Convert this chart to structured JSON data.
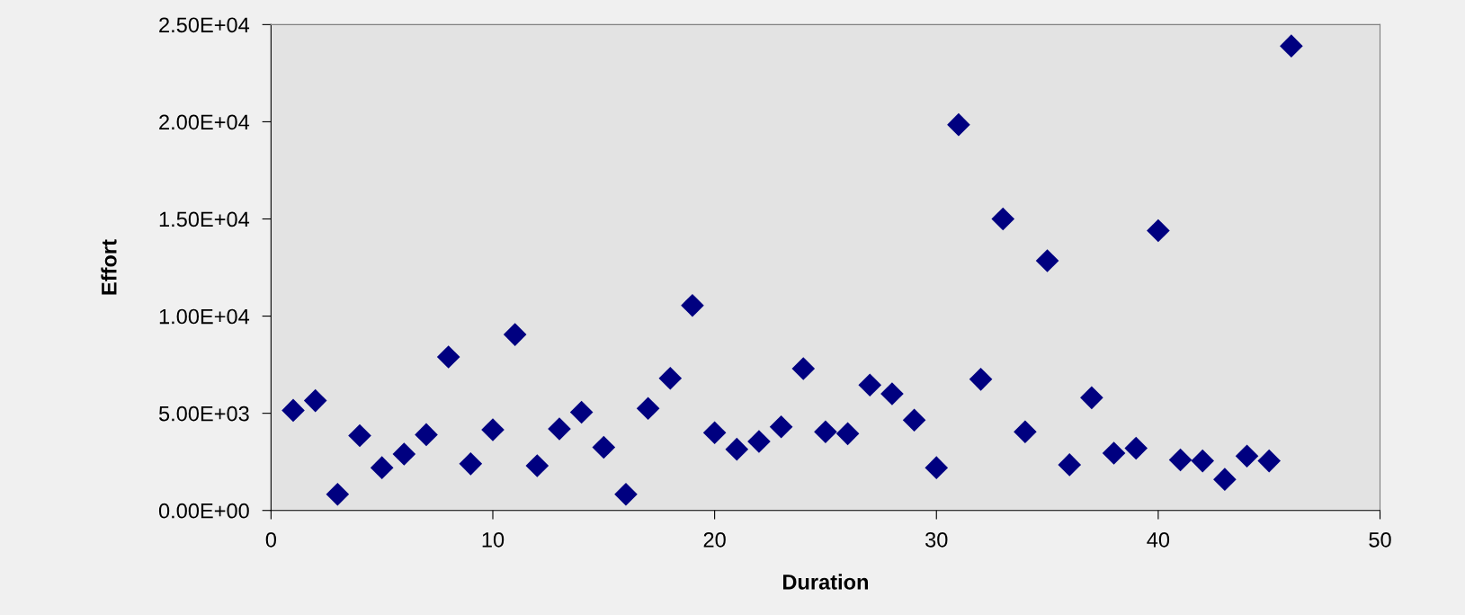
{
  "chart_data": {
    "type": "scatter",
    "xlabel": "Duration",
    "ylabel": "Effort",
    "x": [
      1,
      2,
      3,
      4,
      5,
      6,
      7,
      8,
      9,
      10,
      11,
      12,
      13,
      14,
      15,
      16,
      17,
      18,
      19,
      20,
      21,
      22,
      23,
      24,
      25,
      26,
      27,
      28,
      29,
      30,
      31,
      32,
      33,
      34,
      35,
      36,
      37,
      38,
      39,
      40,
      41,
      42,
      43,
      44,
      45,
      46
    ],
    "values": [
      5150,
      5650,
      830,
      3850,
      2200,
      2900,
      3900,
      7900,
      2400,
      4150,
      9050,
      2300,
      4200,
      5050,
      3250,
      830,
      5250,
      6800,
      10550,
      4000,
      3150,
      3550,
      4300,
      7300,
      4050,
      3950,
      6450,
      6000,
      4650,
      2200,
      19850,
      6750,
      15000,
      4050,
      12850,
      2350,
      5800,
      2950,
      3200,
      14400,
      2600,
      2550,
      1600,
      2800,
      2550,
      23900
    ],
    "color": "#000080",
    "marker": "diamond",
    "grid": false,
    "legend": false,
    "xlim": [
      0,
      50
    ],
    "xticks": [
      0,
      10,
      20,
      30,
      40,
      50
    ],
    "ylim": [
      0,
      25000
    ],
    "yticks": [
      {
        "value": 0,
        "label": "0.00E+00"
      },
      {
        "value": 5000,
        "label": "5.00E+03"
      },
      {
        "value": 10000,
        "label": "1.00E+04"
      },
      {
        "value": 15000,
        "label": "1.50E+04"
      },
      {
        "value": 20000,
        "label": "2.00E+04"
      },
      {
        "value": 25000,
        "label": "2.50E+04"
      }
    ]
  }
}
